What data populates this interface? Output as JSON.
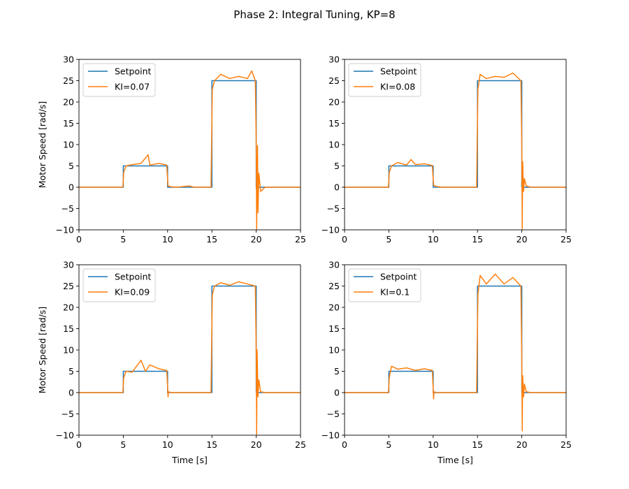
{
  "figure": {
    "title": "Phase 2: Integral Tuning, KP=8"
  },
  "colors": {
    "setpoint": "#1f77b4",
    "response": "#ff7f0e",
    "axes": "#000000"
  },
  "chart_data": [
    {
      "type": "line",
      "title": "",
      "xlabel": "",
      "ylabel": "Motor Speed [rad/s]",
      "xlim": [
        0,
        25
      ],
      "ylim": [
        -10,
        30
      ],
      "xticks": [
        0,
        5,
        10,
        15,
        20,
        25
      ],
      "yticks": [
        -10,
        -5,
        0,
        5,
        10,
        15,
        20,
        25,
        30
      ],
      "grid": false,
      "legend": "upper-left",
      "series": [
        {
          "name": "Setpoint",
          "x": [
            0,
            5,
            5,
            10,
            10,
            15,
            15,
            20,
            20,
            25
          ],
          "y": [
            0,
            0,
            5,
            5,
            0,
            0,
            25,
            25,
            0,
            0
          ]
        },
        {
          "name": "KI=0.07",
          "x": [
            0,
            4.95,
            5.05,
            5.3,
            6,
            7,
            7.8,
            8,
            9,
            9.9,
            10.05,
            10.4,
            11,
            12.5,
            12.8,
            13,
            14.9,
            15.05,
            15.3,
            16,
            17,
            18,
            19,
            19.5,
            19.9,
            20.0,
            20.05,
            20.1,
            20.15,
            20.2,
            20.3,
            20.5,
            21,
            25
          ],
          "y": [
            0,
            0,
            3.5,
            5,
            5.3,
            5.6,
            7.6,
            5.2,
            5.6,
            5.2,
            0.3,
            0.1,
            0,
            0.3,
            0.1,
            0,
            0,
            23,
            25,
            26.5,
            25.5,
            26,
            25.5,
            27.3,
            25,
            11,
            -9.8,
            2,
            9.8,
            -6,
            3.3,
            -1,
            0,
            0
          ]
        }
      ]
    },
    {
      "type": "line",
      "title": "",
      "xlabel": "",
      "ylabel": "",
      "xlim": [
        0,
        25
      ],
      "ylim": [
        -10,
        30
      ],
      "xticks": [
        0,
        5,
        10,
        15,
        20,
        25
      ],
      "yticks": [
        -10,
        -5,
        0,
        5,
        10,
        15,
        20,
        25,
        30
      ],
      "grid": false,
      "legend": "upper-left",
      "series": [
        {
          "name": "Setpoint",
          "x": [
            0,
            5,
            5,
            10,
            10,
            15,
            15,
            20,
            20,
            25
          ],
          "y": [
            0,
            0,
            5,
            5,
            0,
            0,
            25,
            25,
            0,
            0
          ]
        },
        {
          "name": "KI=0.08",
          "x": [
            0,
            4.95,
            5.05,
            5.3,
            6,
            7,
            7.5,
            8,
            9,
            9.9,
            10.05,
            10.3,
            11,
            14.9,
            15.05,
            15.3,
            16,
            17,
            18,
            19,
            19.9,
            20.0,
            20.05,
            20.1,
            20.2,
            20.3,
            20.5,
            21,
            25
          ],
          "y": [
            0,
            0,
            3.5,
            5,
            5.8,
            5.2,
            6.5,
            5.3,
            5.5,
            5.1,
            0.5,
            0.2,
            0,
            0,
            23,
            26.5,
            25.5,
            26,
            25.8,
            26.8,
            25,
            10,
            -9.8,
            6,
            -1,
            2,
            0.3,
            0,
            0
          ]
        }
      ]
    },
    {
      "type": "line",
      "title": "",
      "xlabel": "Time [s]",
      "ylabel": "Motor Speed [rad/s]",
      "xlim": [
        0,
        25
      ],
      "ylim": [
        -10,
        30
      ],
      "xticks": [
        0,
        5,
        10,
        15,
        20,
        25
      ],
      "yticks": [
        -10,
        -5,
        0,
        5,
        10,
        15,
        20,
        25,
        30
      ],
      "grid": false,
      "legend": "upper-left",
      "series": [
        {
          "name": "Setpoint",
          "x": [
            0,
            5,
            5,
            10,
            10,
            15,
            15,
            20,
            20,
            25
          ],
          "y": [
            0,
            0,
            5,
            5,
            0,
            0,
            25,
            25,
            0,
            0
          ]
        },
        {
          "name": "KI=0.09",
          "x": [
            0,
            4.95,
            5.05,
            5.3,
            6,
            7,
            7.5,
            8,
            9,
            9.9,
            10.0,
            10.05,
            10.1,
            10.4,
            11,
            14.9,
            15.05,
            15.3,
            16,
            17,
            18,
            19,
            19.9,
            20.0,
            20.05,
            20.1,
            20.2,
            20.3,
            20.5,
            21,
            25
          ],
          "y": [
            0,
            0,
            3.5,
            5,
            4.8,
            7.6,
            5,
            6.5,
            5.6,
            5.2,
            1.5,
            -1,
            0.2,
            0,
            0,
            0,
            23,
            25,
            25.8,
            25.2,
            26,
            25.5,
            25,
            10,
            -9.8,
            10,
            -1,
            3,
            0.2,
            0,
            0
          ]
        }
      ]
    },
    {
      "type": "line",
      "title": "",
      "xlabel": "Time [s]",
      "ylabel": "",
      "xlim": [
        0,
        25
      ],
      "ylim": [
        -10,
        30
      ],
      "xticks": [
        0,
        5,
        10,
        15,
        20,
        25
      ],
      "yticks": [
        -10,
        -5,
        0,
        5,
        10,
        15,
        20,
        25,
        30
      ],
      "grid": false,
      "legend": "upper-left",
      "series": [
        {
          "name": "Setpoint",
          "x": [
            0,
            5,
            5,
            10,
            10,
            15,
            15,
            20,
            20,
            25
          ],
          "y": [
            0,
            0,
            5,
            5,
            0,
            0,
            25,
            25,
            0,
            0
          ]
        },
        {
          "name": "KI=0.1",
          "x": [
            0,
            4.95,
            5.05,
            5.3,
            6,
            7,
            8,
            9,
            9.9,
            10.0,
            10.05,
            10.1,
            10.4,
            11,
            14.9,
            15.05,
            15.3,
            16,
            17,
            18,
            19,
            19.9,
            20.0,
            20.05,
            20.1,
            20.2,
            20.3,
            20.5,
            21,
            25
          ],
          "y": [
            0,
            0,
            3.5,
            6.2,
            5.5,
            5.8,
            5.2,
            5.6,
            5.2,
            1,
            -1.5,
            0.2,
            0,
            0,
            0,
            23,
            27.5,
            25.5,
            27.8,
            25.5,
            27,
            25,
            8,
            -9,
            4,
            -1,
            2,
            0.2,
            0,
            0
          ]
        }
      ]
    }
  ]
}
